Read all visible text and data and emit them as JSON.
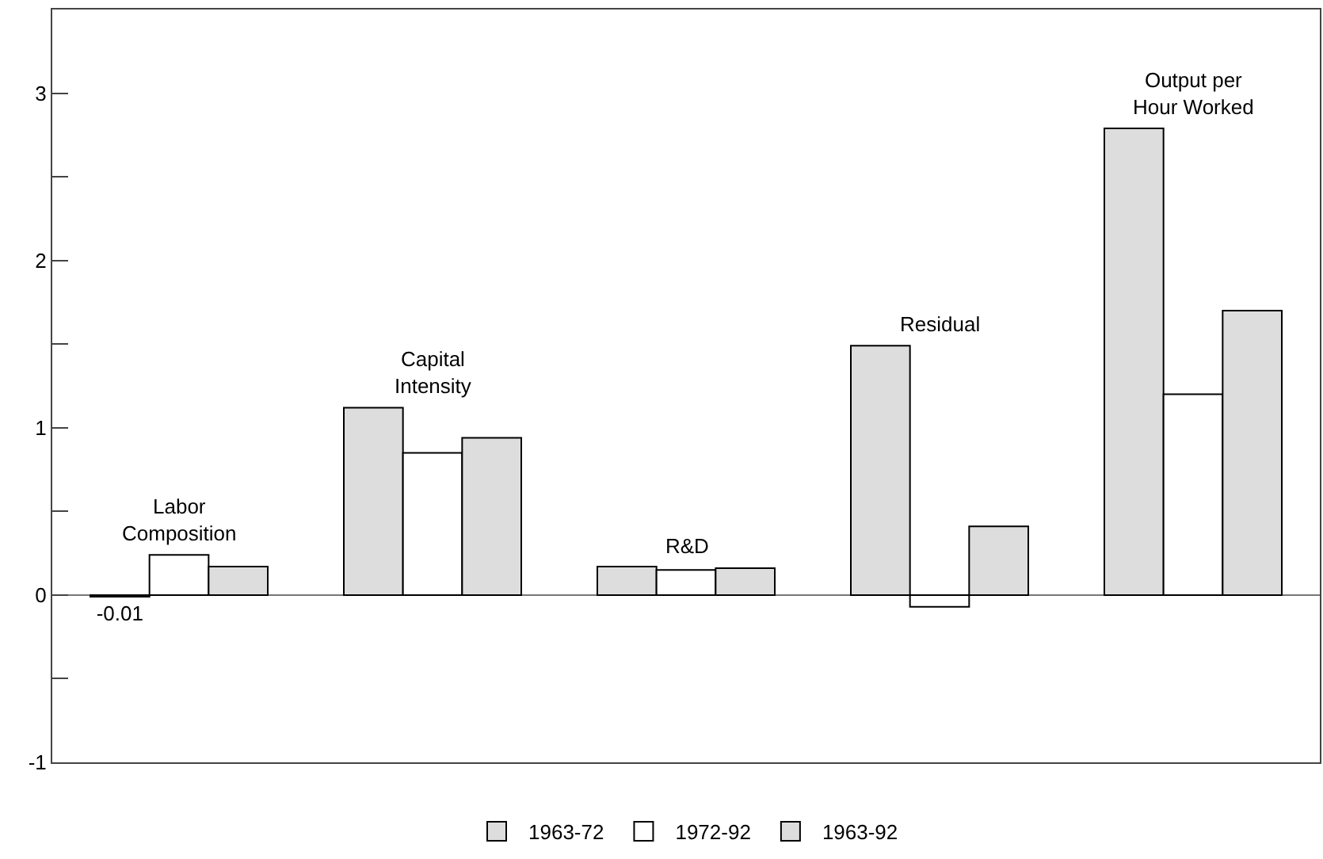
{
  "chart_data": {
    "type": "bar",
    "categories": [
      "Labor\nComposition",
      "Capital\nIntensity",
      "R&D",
      "Residual",
      "Output per\nHour Worked"
    ],
    "series": [
      {
        "name": "1963-72",
        "color": "#dddddd",
        "values": [
          -0.01,
          1.12,
          0.17,
          1.49,
          2.79
        ],
        "value_labels": [
          "-0.01",
          null,
          null,
          null,
          null
        ]
      },
      {
        "name": "1972-92",
        "color": "#ffffff",
        "values": [
          0.24,
          0.85,
          0.15,
          -0.07,
          1.2
        ]
      },
      {
        "name": "1963-92",
        "color": "#dddddd",
        "values": [
          0.17,
          0.94,
          0.16,
          0.41,
          1.7
        ]
      }
    ],
    "ylim": [
      -1,
      3.5
    ],
    "yticks": [
      -1,
      {
        "value": -0.5,
        "label": null
      },
      0,
      {
        "value": 0.5,
        "label": null
      },
      1,
      {
        "value": 1.5,
        "label": null
      },
      2,
      {
        "value": 2.5,
        "label": null
      },
      3
    ],
    "tick_labels": "y",
    "grid": false,
    "ref_lines": [
      {
        "axis": "y",
        "value": 0,
        "color": "#777777"
      }
    ],
    "legend": "bottom"
  }
}
